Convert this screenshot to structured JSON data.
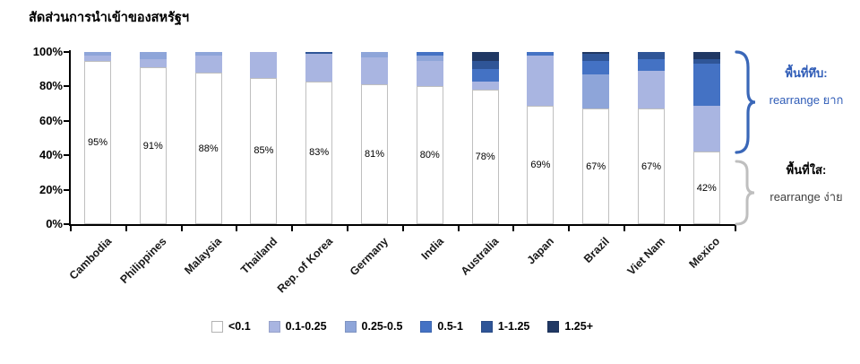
{
  "title": "สัดส่วนการนำเข้าของสหรัฐฯ",
  "annotations": {
    "opaque": {
      "line1": "พื้นที่ทึบ:",
      "line2": "rearrange ยาก",
      "color": "#2f5cb7",
      "brace_color": "#3a67b8"
    },
    "clear": {
      "line1": "พื้นที่ใส:",
      "line2": "rearrange ง่าย",
      "color": "#3f3f3f",
      "brace_color": "#bfbfbf"
    }
  },
  "chart_data": {
    "type": "bar",
    "subtype": "stacked-percent-column",
    "title": "สัดส่วนการนำเข้าของสหรัฐฯ",
    "categories": [
      "Cambodia",
      "Philippines",
      "Malaysia",
      "Thailand",
      "Rep. of Korea",
      "Germany",
      "India",
      "Australia",
      "Japan",
      "Brazil",
      "Viet Nam",
      "Mexico"
    ],
    "bar_labels": [
      "95%",
      "91%",
      "88%",
      "85%",
      "83%",
      "81%",
      "80%",
      "78%",
      "69%",
      "67%",
      "67%",
      "42%"
    ],
    "series": [
      {
        "name": "<0.1",
        "color": "#ffffff",
        "values": [
          95,
          91,
          88,
          85,
          83,
          81,
          80,
          78,
          69,
          67,
          67,
          42
        ]
      },
      {
        "name": "0.1-0.25",
        "color": "#a9b5e1",
        "values": [
          3,
          5,
          10,
          15,
          16,
          16,
          15,
          5,
          29,
          0,
          22,
          27
        ]
      },
      {
        "name": "0.25-0.5",
        "color": "#8ea5d9",
        "values": [
          2,
          4,
          2,
          0,
          0,
          3,
          3,
          0,
          0,
          20,
          0,
          0
        ]
      },
      {
        "name": "0.5-1",
        "color": "#4472c4",
        "values": [
          0,
          0,
          0,
          0,
          0,
          0,
          2,
          7,
          2,
          8,
          7,
          24
        ]
      },
      {
        "name": "1-1.25",
        "color": "#2f5597",
        "values": [
          0,
          0,
          0,
          0,
          1,
          0,
          0,
          5,
          0,
          4,
          4,
          3
        ]
      },
      {
        "name": "1.25+",
        "color": "#203864",
        "values": [
          0,
          0,
          0,
          0,
          0,
          0,
          0,
          5,
          0,
          1,
          0,
          4
        ]
      }
    ],
    "y_ticks": [
      "100%",
      "80%",
      "60%",
      "40%",
      "20%",
      "0%"
    ],
    "ylim": [
      0,
      100
    ],
    "ylabel": "",
    "xlabel": "",
    "grid": false,
    "legend_position": "bottom",
    "legend_labels": [
      "<0.1",
      "0.1-0.25",
      "0.25-0.5",
      "0.5-1",
      "1-1.25",
      "1.25+"
    ]
  }
}
